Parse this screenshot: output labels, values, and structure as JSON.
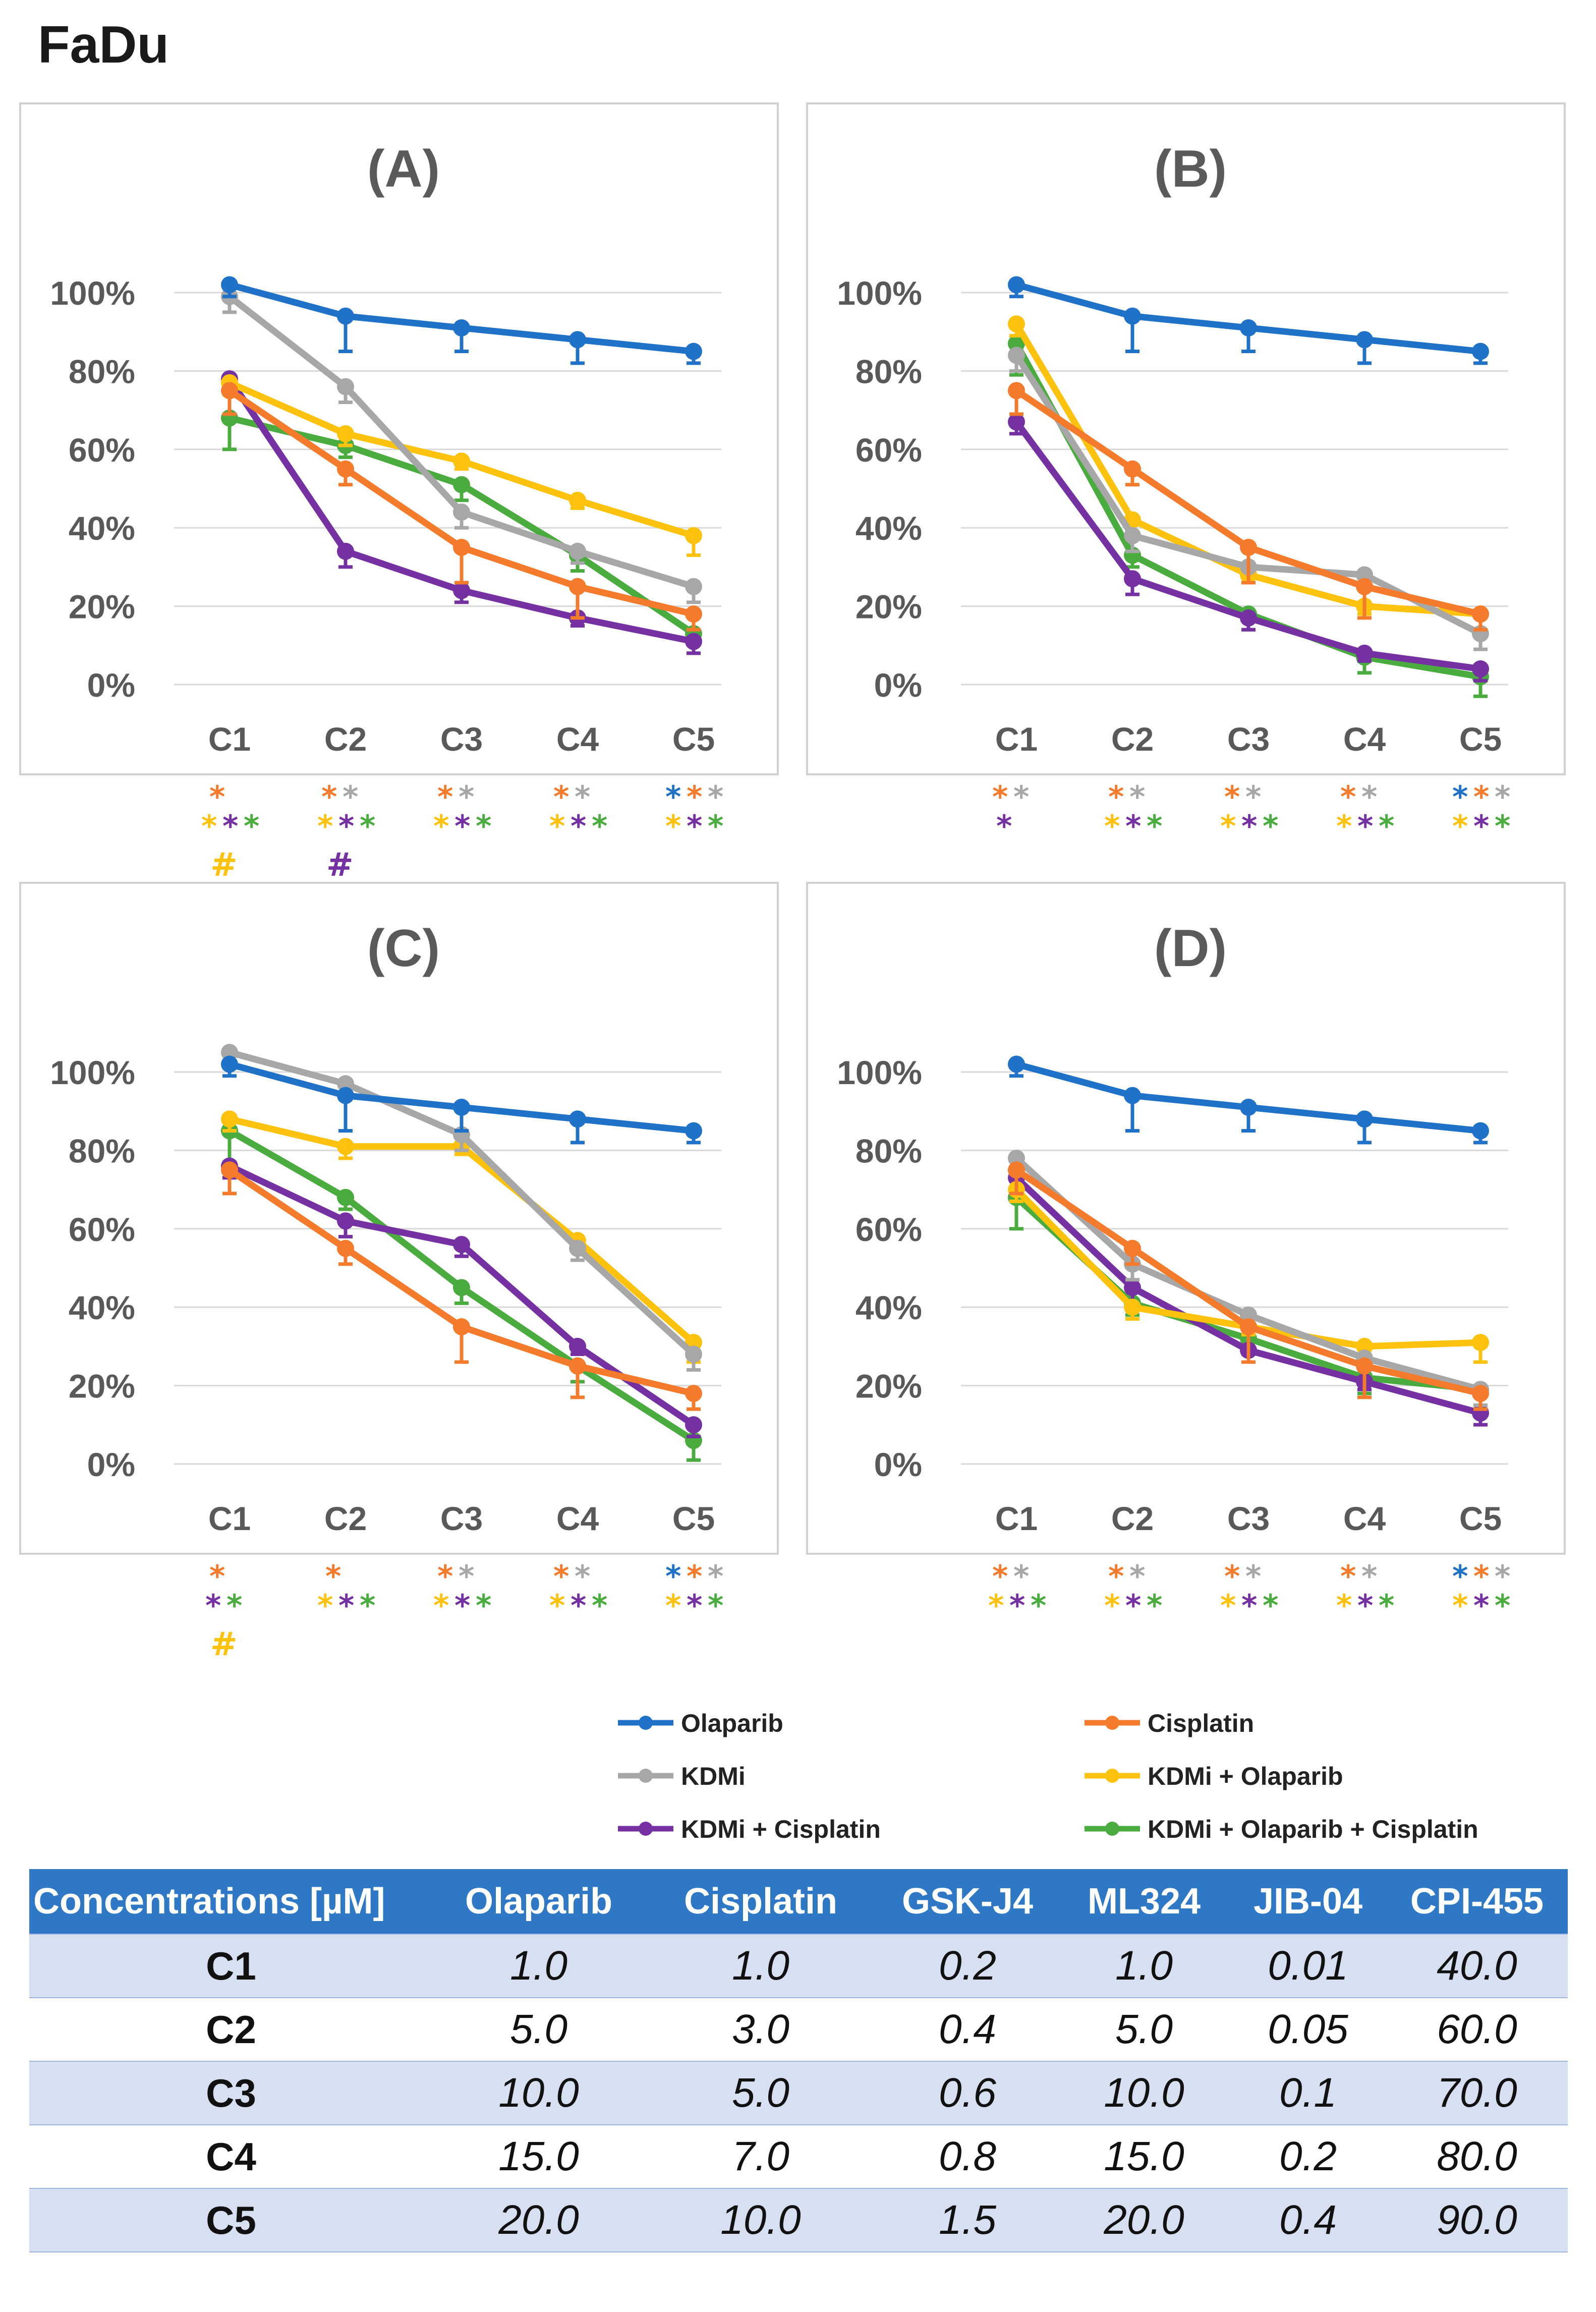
{
  "figure_title": "FaDu",
  "colors": {
    "Olaparib": "#1f72c8",
    "Cisplatin": "#f47b2b",
    "KDMi": "#a7a7a7",
    "KDMi + Olaparib": "#fcc20d",
    "KDMi + Cisplatin": "#7530a1",
    "KDMi + Olaparib + Cisplatin": "#4aab3f"
  },
  "chart_data": [
    {
      "type": "line",
      "title": "(A)",
      "categories": [
        "C1",
        "C2",
        "C3",
        "C4",
        "C5"
      ],
      "yticks": [
        "0%",
        "20%",
        "40%",
        "60%",
        "80%",
        "100%"
      ],
      "ylim": [
        0,
        100
      ],
      "series": [
        {
          "name": "Olaparib",
          "values": [
            102,
            94,
            91,
            88,
            85
          ]
        },
        {
          "name": "Cisplatin",
          "values": [
            75,
            55,
            35,
            25,
            18
          ]
        },
        {
          "name": "KDMi",
          "values": [
            99,
            76,
            44,
            34,
            25
          ]
        },
        {
          "name": "KDMi + Olaparib",
          "values": [
            77,
            64,
            57,
            47,
            38
          ]
        },
        {
          "name": "KDMi + Cisplatin",
          "values": [
            78,
            34,
            24,
            17,
            11
          ]
        },
        {
          "name": "KDMi + Olaparib + Cisplatin",
          "values": [
            68,
            61,
            51,
            33,
            13
          ]
        }
      ],
      "significance": [
        {
          "category": "C1",
          "rows": [
            [
              "Cisplatin"
            ],
            [
              "KDMi + Olaparib",
              "KDMi + Cisplatin",
              "KDMi + Olaparib + Cisplatin"
            ]
          ],
          "hash": "KDMi + Olaparib"
        },
        {
          "category": "C2",
          "rows": [
            [
              "Cisplatin",
              "KDMi"
            ],
            [
              "KDMi + Olaparib",
              "KDMi + Cisplatin",
              "KDMi + Olaparib + Cisplatin"
            ]
          ],
          "hash": "KDMi + Cisplatin"
        },
        {
          "category": "C3",
          "rows": [
            [
              "Cisplatin",
              "KDMi"
            ],
            [
              "KDMi + Olaparib",
              "KDMi + Cisplatin",
              "KDMi + Olaparib + Cisplatin"
            ]
          ]
        },
        {
          "category": "C4",
          "rows": [
            [
              "Cisplatin",
              "KDMi"
            ],
            [
              "KDMi + Olaparib",
              "KDMi + Cisplatin",
              "KDMi + Olaparib + Cisplatin"
            ]
          ]
        },
        {
          "category": "C5",
          "rows": [
            [
              "Olaparib",
              "Cisplatin",
              "KDMi"
            ],
            [
              "KDMi + Olaparib",
              "KDMi + Cisplatin",
              "KDMi + Olaparib + Cisplatin"
            ]
          ]
        }
      ]
    },
    {
      "type": "line",
      "title": "(B)",
      "categories": [
        "C1",
        "C2",
        "C3",
        "C4",
        "C5"
      ],
      "yticks": [
        "0%",
        "20%",
        "40%",
        "60%",
        "80%",
        "100%"
      ],
      "ylim": [
        0,
        100
      ],
      "series": [
        {
          "name": "Olaparib",
          "values": [
            102,
            94,
            91,
            88,
            85
          ]
        },
        {
          "name": "Cisplatin",
          "values": [
            75,
            55,
            35,
            25,
            18
          ]
        },
        {
          "name": "KDMi",
          "values": [
            84,
            38,
            30,
            28,
            13
          ]
        },
        {
          "name": "KDMi + Olaparib",
          "values": [
            92,
            42,
            28,
            20,
            18
          ]
        },
        {
          "name": "KDMi + Cisplatin",
          "values": [
            67,
            27,
            17,
            8,
            4
          ]
        },
        {
          "name": "KDMi + Olaparib + Cisplatin",
          "values": [
            87,
            33,
            18,
            7,
            2
          ]
        }
      ],
      "significance": [
        {
          "category": "C1",
          "rows": [
            [
              "Cisplatin",
              "KDMi"
            ],
            [
              "KDMi + Cisplatin"
            ]
          ]
        },
        {
          "category": "C2",
          "rows": [
            [
              "Cisplatin",
              "KDMi"
            ],
            [
              "KDMi + Olaparib",
              "KDMi + Cisplatin",
              "KDMi + Olaparib + Cisplatin"
            ]
          ]
        },
        {
          "category": "C3",
          "rows": [
            [
              "Cisplatin",
              "KDMi"
            ],
            [
              "KDMi + Olaparib",
              "KDMi + Cisplatin",
              "KDMi + Olaparib + Cisplatin"
            ]
          ]
        },
        {
          "category": "C4",
          "rows": [
            [
              "Cisplatin",
              "KDMi"
            ],
            [
              "KDMi + Olaparib",
              "KDMi + Cisplatin",
              "KDMi + Olaparib + Cisplatin"
            ]
          ]
        },
        {
          "category": "C5",
          "rows": [
            [
              "Olaparib",
              "Cisplatin",
              "KDMi"
            ],
            [
              "KDMi + Olaparib",
              "KDMi + Cisplatin",
              "KDMi + Olaparib + Cisplatin"
            ]
          ]
        }
      ]
    },
    {
      "type": "line",
      "title": "(C)",
      "categories": [
        "C1",
        "C2",
        "C3",
        "C4",
        "C5"
      ],
      "yticks": [
        "0%",
        "20%",
        "40%",
        "60%",
        "80%",
        "100%"
      ],
      "ylim": [
        0,
        100
      ],
      "series": [
        {
          "name": "Olaparib",
          "values": [
            102,
            94,
            91,
            88,
            85
          ]
        },
        {
          "name": "Cisplatin",
          "values": [
            75,
            55,
            35,
            25,
            18
          ]
        },
        {
          "name": "KDMi",
          "values": [
            105,
            97,
            84,
            55,
            28
          ]
        },
        {
          "name": "KDMi + Olaparib",
          "values": [
            88,
            81,
            81,
            57,
            31
          ]
        },
        {
          "name": "KDMi + Cisplatin",
          "values": [
            76,
            62,
            56,
            30,
            10
          ]
        },
        {
          "name": "KDMi + Olaparib + Cisplatin",
          "values": [
            85,
            68,
            45,
            25,
            6
          ]
        }
      ],
      "significance": [
        {
          "category": "C1",
          "rows": [
            [
              "Cisplatin"
            ],
            [
              "KDMi + Cisplatin",
              "KDMi + Olaparib + Cisplatin"
            ]
          ],
          "hash": "KDMi + Olaparib"
        },
        {
          "category": "C2",
          "rows": [
            [
              "Cisplatin"
            ],
            [
              "KDMi + Olaparib",
              "KDMi + Cisplatin",
              "KDMi + Olaparib + Cisplatin"
            ]
          ]
        },
        {
          "category": "C3",
          "rows": [
            [
              "Cisplatin",
              "KDMi"
            ],
            [
              "KDMi + Olaparib",
              "KDMi + Cisplatin",
              "KDMi + Olaparib + Cisplatin"
            ]
          ]
        },
        {
          "category": "C4",
          "rows": [
            [
              "Cisplatin",
              "KDMi"
            ],
            [
              "KDMi + Olaparib",
              "KDMi + Cisplatin",
              "KDMi + Olaparib + Cisplatin"
            ]
          ]
        },
        {
          "category": "C5",
          "rows": [
            [
              "Olaparib",
              "Cisplatin",
              "KDMi"
            ],
            [
              "KDMi + Olaparib",
              "KDMi + Cisplatin",
              "KDMi + Olaparib + Cisplatin"
            ]
          ]
        }
      ]
    },
    {
      "type": "line",
      "title": "(D)",
      "categories": [
        "C1",
        "C2",
        "C3",
        "C4",
        "C5"
      ],
      "yticks": [
        "0%",
        "20%",
        "40%",
        "60%",
        "80%",
        "100%"
      ],
      "ylim": [
        0,
        100
      ],
      "series": [
        {
          "name": "Olaparib",
          "values": [
            102,
            94,
            91,
            88,
            85
          ]
        },
        {
          "name": "Cisplatin",
          "values": [
            75,
            55,
            35,
            25,
            18
          ]
        },
        {
          "name": "KDMi",
          "values": [
            78,
            51,
            38,
            27,
            19
          ]
        },
        {
          "name": "KDMi + Olaparib",
          "values": [
            70,
            40,
            35,
            30,
            31
          ]
        },
        {
          "name": "KDMi + Cisplatin",
          "values": [
            73,
            45,
            29,
            21,
            13
          ]
        },
        {
          "name": "KDMi + Olaparib + Cisplatin",
          "values": [
            68,
            41,
            32,
            22,
            19
          ]
        }
      ],
      "significance": [
        {
          "category": "C1",
          "rows": [
            [
              "Cisplatin",
              "KDMi"
            ],
            [
              "KDMi + Olaparib",
              "KDMi + Cisplatin",
              "KDMi + Olaparib + Cisplatin"
            ]
          ]
        },
        {
          "category": "C2",
          "rows": [
            [
              "Cisplatin",
              "KDMi"
            ],
            [
              "KDMi + Olaparib",
              "KDMi + Cisplatin",
              "KDMi + Olaparib + Cisplatin"
            ]
          ]
        },
        {
          "category": "C3",
          "rows": [
            [
              "Cisplatin",
              "KDMi"
            ],
            [
              "KDMi + Olaparib",
              "KDMi + Cisplatin",
              "KDMi + Olaparib + Cisplatin"
            ]
          ]
        },
        {
          "category": "C4",
          "rows": [
            [
              "Cisplatin",
              "KDMi"
            ],
            [
              "KDMi + Olaparib",
              "KDMi + Cisplatin",
              "KDMi + Olaparib + Cisplatin"
            ]
          ]
        },
        {
          "category": "C5",
          "rows": [
            [
              "Olaparib",
              "Cisplatin",
              "KDMi"
            ],
            [
              "KDMi + Olaparib",
              "KDMi + Cisplatin",
              "KDMi + Olaparib + Cisplatin"
            ]
          ]
        }
      ]
    }
  ],
  "legend": [
    "Olaparib",
    "Cisplatin",
    "KDMi",
    "KDMi + Olaparib",
    "KDMi + Cisplatin",
    "KDMi + Olaparib + Cisplatin"
  ],
  "table": {
    "headers": [
      "Concentrations [µM]",
      "Olaparib",
      "Cisplatin",
      "GSK-J4",
      "ML324",
      "JIB-04",
      "CPI-455"
    ],
    "rows": [
      [
        "C1",
        "1.0",
        "1.0",
        "0.2",
        "1.0",
        "0.01",
        "40.0"
      ],
      [
        "C2",
        "5.0",
        "3.0",
        "0.4",
        "5.0",
        "0.05",
        "60.0"
      ],
      [
        "C3",
        "10.0",
        "5.0",
        "0.6",
        "10.0",
        "0.1",
        "70.0"
      ],
      [
        "C4",
        "15.0",
        "7.0",
        "0.8",
        "15.0",
        "0.2",
        "80.0"
      ],
      [
        "C5",
        "20.0",
        "10.0",
        "1.5",
        "20.0",
        "0.4",
        "90.0"
      ]
    ]
  }
}
